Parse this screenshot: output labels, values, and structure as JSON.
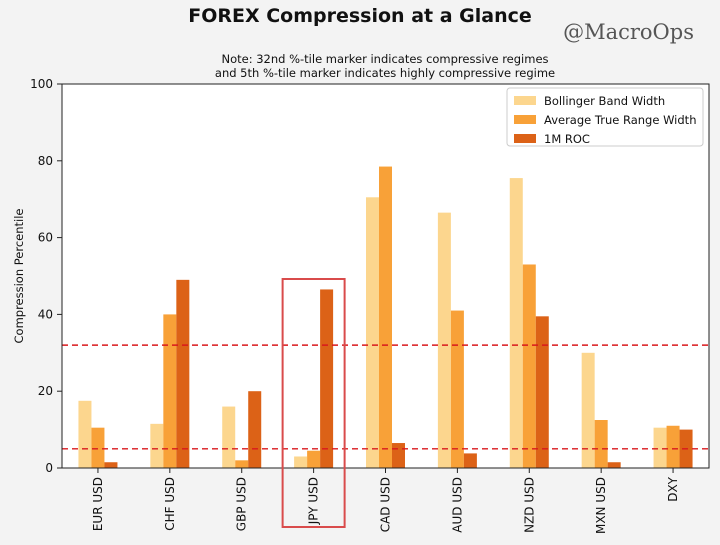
{
  "header": {
    "title": "FOREX Compression at a Glance",
    "watermark": "@MacroOps",
    "note_line1": "Note: 32nd %-tile marker indicates compressive regimes",
    "note_line2": "and 5th %-tile marker indicates highly compressive regime"
  },
  "colors": {
    "bollinger": "#fcd68e",
    "atr": "#f8a138",
    "roc": "#dc6217",
    "threshold_line": "#d9181c",
    "highlight_box": "#d94b4b"
  },
  "chart_data": {
    "type": "bar",
    "title": "",
    "xlabel": "",
    "ylabel": "Compression Percentile",
    "ylim": [
      0,
      100
    ],
    "yticks": [
      0,
      20,
      40,
      60,
      80,
      100
    ],
    "grid": false,
    "legend_position": "top-right",
    "categories": [
      "EUR USD",
      "CHF USD",
      "GBP USD",
      "JPY USD",
      "CAD USD",
      "AUD USD",
      "NZD USD",
      "MXN USD",
      "DXY"
    ],
    "series": [
      {
        "name": "Bollinger Band Width",
        "values": [
          17.5,
          11.5,
          16,
          3,
          70.5,
          66.5,
          75.5,
          30,
          10.5
        ]
      },
      {
        "name": "Average True Range Width",
        "values": [
          10.5,
          40,
          2,
          4.5,
          78.5,
          41,
          53,
          12.5,
          11
        ]
      },
      {
        "name": "1M ROC",
        "values": [
          1.5,
          49,
          20,
          46.5,
          6.5,
          3.8,
          39.5,
          1.5,
          10
        ]
      }
    ],
    "reference_lines": [
      32,
      5
    ],
    "highlighted_category": "JPY USD"
  }
}
